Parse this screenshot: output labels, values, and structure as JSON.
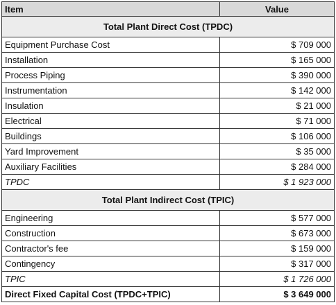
{
  "table": {
    "header": [
      "Item",
      "Value"
    ],
    "sections": [
      {
        "title": "Total Plant Direct Cost (TPDC)",
        "rows": [
          [
            "Equipment Purchase Cost",
            "$ 709 000"
          ],
          [
            "Installation",
            "$ 165 000"
          ],
          [
            "Process Piping",
            "$ 390 000"
          ],
          [
            "Instrumentation",
            "$ 142 000"
          ],
          [
            "Insulation",
            "$ 21 000"
          ],
          [
            "Electrical",
            "$ 71 000"
          ],
          [
            "Buildings",
            "$ 106 000"
          ],
          [
            "Yard Improvement",
            "$ 35 000"
          ],
          [
            "Auxiliary Facilities",
            "$ 284 000"
          ]
        ],
        "total": [
          "TPDC",
          "$ 1 923 000"
        ]
      },
      {
        "title": "Total Plant Indirect Cost (TPIC)",
        "rows": [
          [
            "Engineering",
            "$ 577 000"
          ],
          [
            "Construction",
            "$ 673 000"
          ],
          [
            "Contractor's fee",
            "$ 159 000"
          ],
          [
            "Contingency",
            "$ 317 000"
          ]
        ],
        "total": [
          "TPIC",
          "$ 1 726 000"
        ]
      }
    ],
    "grand_total": [
      "Direct Fixed Capital Cost (TPDC+TPIC)",
      "$ 3 649 000"
    ]
  }
}
